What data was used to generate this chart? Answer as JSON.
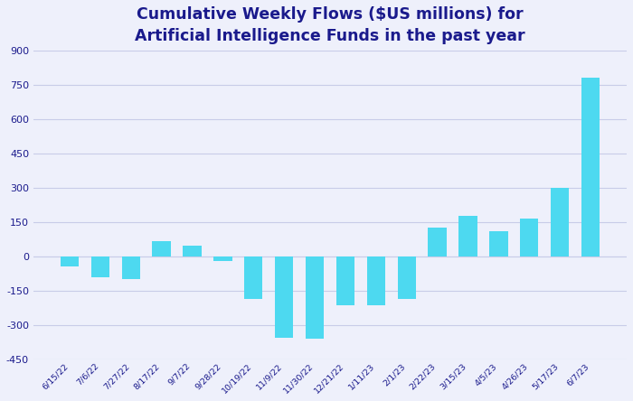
{
  "title": "Cumulative Weekly Flows ($US millions) for\nArtificial Intelligence Funds in the past year",
  "labels": [
    "6/15/22",
    "7/6/22",
    "7/27/22",
    "8/17/22",
    "9/7/22",
    "9/28/22",
    "10/19/22",
    "11/9/22",
    "11/30/22",
    "12/21/22",
    "1/11/23",
    "2/1/23",
    "2/22/23",
    "3/15/23",
    "4/5/23",
    "4/26/23",
    "5/17/23",
    "6/7/23"
  ],
  "values": [
    -45,
    -90,
    -100,
    65,
    45,
    -20,
    -185,
    -355,
    -360,
    -215,
    -215,
    -185,
    125,
    175,
    110,
    165,
    300,
    780
  ],
  "bar_color": "#4DD9F0",
  "background_color": "#eef0fb",
  "grid_color": "#c8cce8",
  "title_color": "#1a1a8c",
  "tick_color": "#1a1a8c",
  "ylim": [
    -450,
    900
  ],
  "yticks": [
    -450,
    -300,
    -150,
    0,
    150,
    300,
    450,
    600,
    750,
    900
  ]
}
